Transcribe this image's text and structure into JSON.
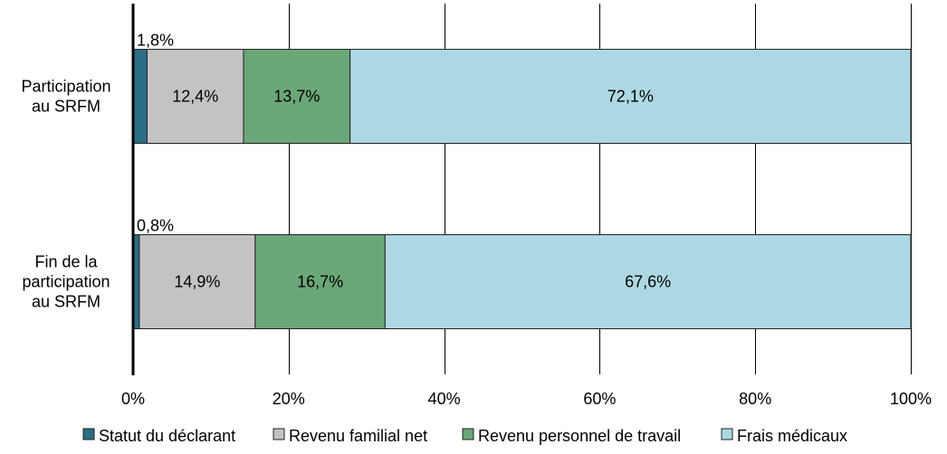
{
  "chart_data": {
    "type": "bar",
    "orientation": "horizontal",
    "stacked": true,
    "percent_axis": true,
    "categories": [
      [
        "Participation",
        "au SRFM"
      ],
      [
        "Fin de la",
        "participation",
        "au SRFM"
      ]
    ],
    "series": [
      {
        "name": "Statut du déclarant",
        "color": "#2a6e84",
        "values": [
          1.8,
          0.8
        ],
        "labels": [
          "1,8%",
          "0,8%"
        ]
      },
      {
        "name": "Revenu familial net",
        "color": "#c3c3c3",
        "values": [
          12.4,
          14.9
        ],
        "labels": [
          "12,4%",
          "14,9%"
        ]
      },
      {
        "name": "Revenu personnel de travail",
        "color": "#6aa777",
        "values": [
          13.7,
          16.7
        ],
        "labels": [
          "13,7%",
          "16,7%"
        ]
      },
      {
        "name": "Frais médicaux",
        "color": "#add8e3",
        "values": [
          72.1,
          67.6
        ],
        "labels": [
          "72,1%",
          "67,6%"
        ]
      }
    ],
    "xlim": [
      0,
      100
    ],
    "xticks": [
      0,
      20,
      40,
      60,
      80,
      100
    ],
    "xtick_labels": [
      "0%",
      "20%",
      "40%",
      "60%",
      "80%",
      "100%"
    ],
    "grid": "vertical",
    "legend_position": "bottom",
    "title": "",
    "xlabel": "",
    "ylabel": ""
  }
}
